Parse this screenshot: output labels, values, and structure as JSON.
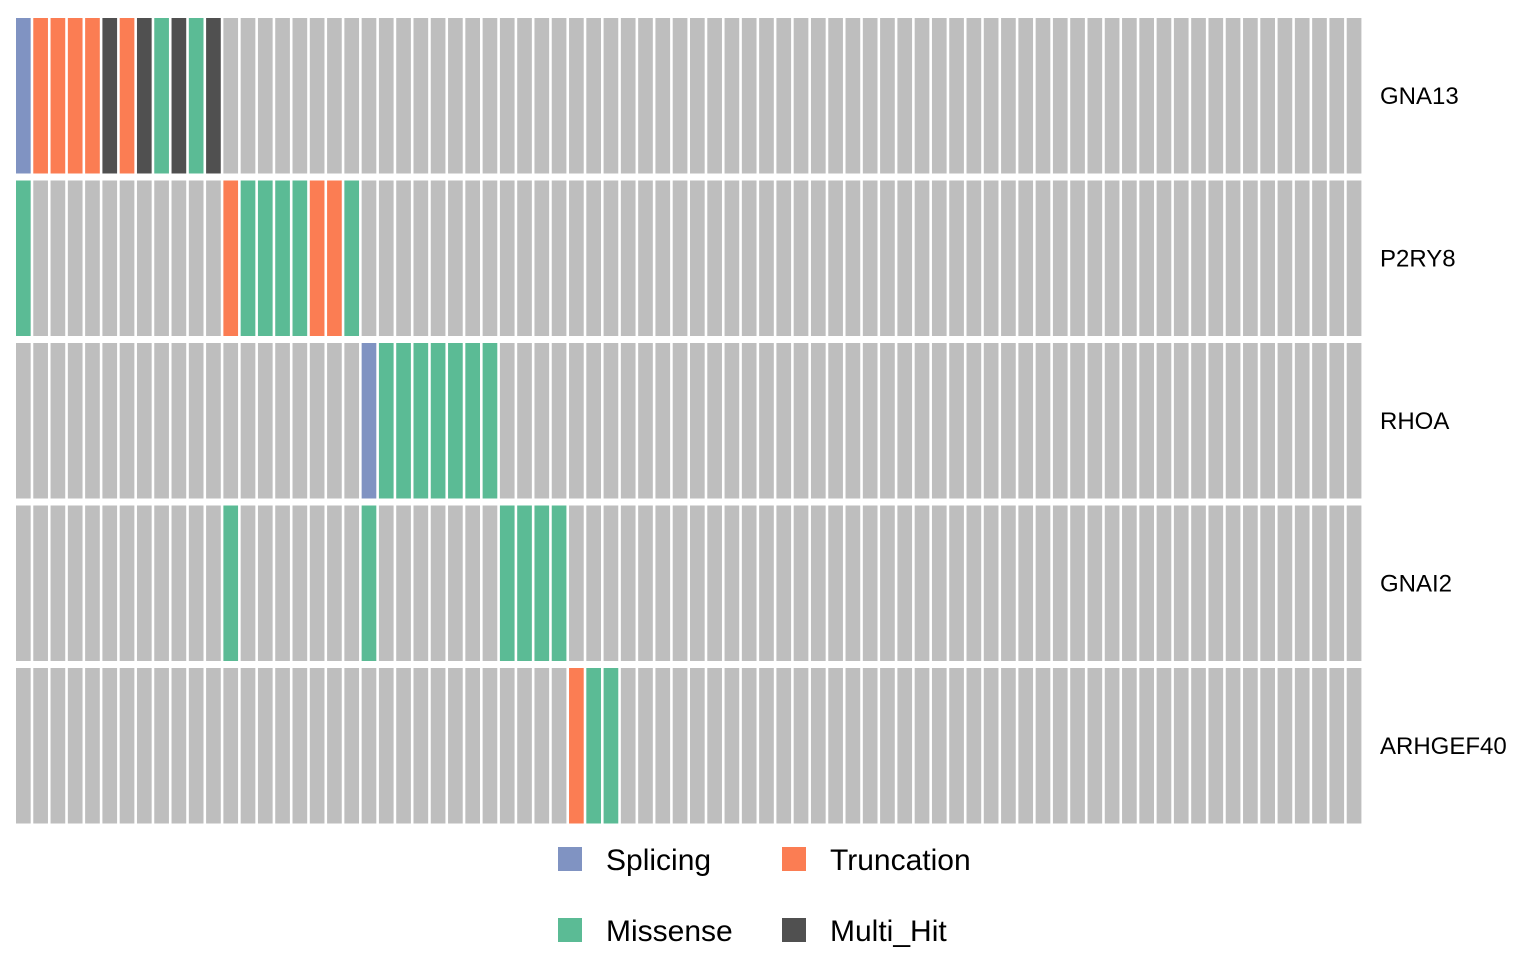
{
  "chart_data": {
    "type": "heatmap",
    "genes": [
      "GNA13",
      "P2RY8",
      "RHOA",
      "GNAI2",
      "ARHGEF40"
    ],
    "n_samples": 78,
    "colors": {
      "none": "#bebebe",
      "Splicing": "#8093c2",
      "Truncation": "#fb7d53",
      "Missense": "#5bbb95",
      "Multi_Hit": "#505050"
    },
    "mutations": {
      "GNA13": [
        {
          "sample": 0,
          "class": "Splicing"
        },
        {
          "sample": 1,
          "class": "Truncation"
        },
        {
          "sample": 2,
          "class": "Truncation"
        },
        {
          "sample": 3,
          "class": "Truncation"
        },
        {
          "sample": 4,
          "class": "Truncation"
        },
        {
          "sample": 5,
          "class": "Multi_Hit"
        },
        {
          "sample": 6,
          "class": "Truncation"
        },
        {
          "sample": 7,
          "class": "Multi_Hit"
        },
        {
          "sample": 8,
          "class": "Missense"
        },
        {
          "sample": 9,
          "class": "Multi_Hit"
        },
        {
          "sample": 10,
          "class": "Missense"
        },
        {
          "sample": 11,
          "class": "Multi_Hit"
        }
      ],
      "P2RY8": [
        {
          "sample": 0,
          "class": "Missense"
        },
        {
          "sample": 12,
          "class": "Truncation"
        },
        {
          "sample": 13,
          "class": "Missense"
        },
        {
          "sample": 14,
          "class": "Missense"
        },
        {
          "sample": 15,
          "class": "Missense"
        },
        {
          "sample": 16,
          "class": "Missense"
        },
        {
          "sample": 17,
          "class": "Truncation"
        },
        {
          "sample": 18,
          "class": "Truncation"
        },
        {
          "sample": 19,
          "class": "Missense"
        }
      ],
      "RHOA": [
        {
          "sample": 20,
          "class": "Splicing"
        },
        {
          "sample": 21,
          "class": "Missense"
        },
        {
          "sample": 22,
          "class": "Missense"
        },
        {
          "sample": 23,
          "class": "Missense"
        },
        {
          "sample": 24,
          "class": "Missense"
        },
        {
          "sample": 25,
          "class": "Missense"
        },
        {
          "sample": 26,
          "class": "Missense"
        },
        {
          "sample": 27,
          "class": "Missense"
        }
      ],
      "GNAI2": [
        {
          "sample": 12,
          "class": "Missense"
        },
        {
          "sample": 20,
          "class": "Missense"
        },
        {
          "sample": 28,
          "class": "Missense"
        },
        {
          "sample": 29,
          "class": "Missense"
        },
        {
          "sample": 30,
          "class": "Missense"
        },
        {
          "sample": 31,
          "class": "Missense"
        }
      ],
      "ARHGEF40": [
        {
          "sample": 32,
          "class": "Truncation"
        },
        {
          "sample": 33,
          "class": "Missense"
        },
        {
          "sample": 34,
          "class": "Missense"
        }
      ]
    },
    "legend": [
      {
        "label": "Splicing",
        "class": "Splicing"
      },
      {
        "label": "Truncation",
        "class": "Truncation"
      },
      {
        "label": "Missense",
        "class": "Missense"
      },
      {
        "label": "Multi_Hit",
        "class": "Multi_Hit"
      }
    ],
    "legend_placement": "bottom"
  }
}
